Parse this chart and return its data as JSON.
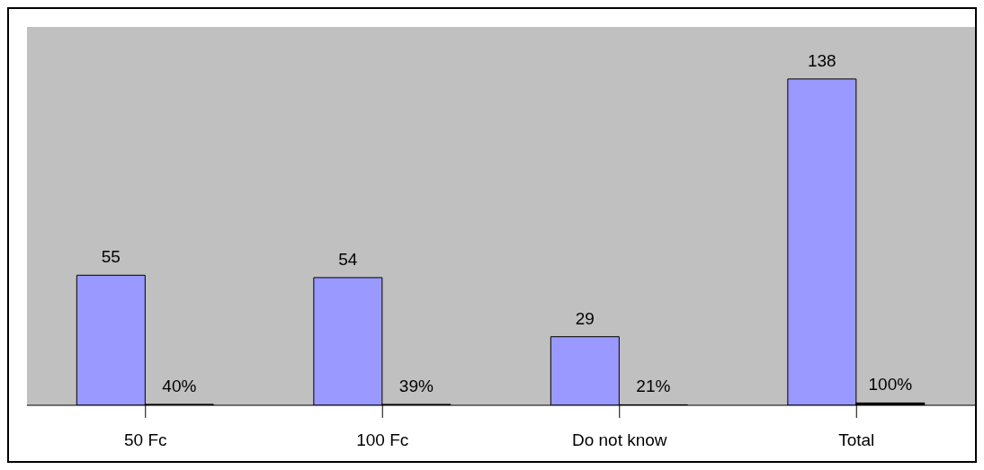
{
  "chart_data": {
    "type": "bar",
    "categories": [
      "50 Fc",
      "100 Fc",
      "Do not know",
      "Total"
    ],
    "series": [
      {
        "color": "#9999ff",
        "values": [
          55,
          54,
          29,
          138
        ],
        "value_labels": [
          "55",
          "54",
          "29",
          "138"
        ]
      },
      {
        "color": "#000000",
        "values": [
          0.4,
          0.39,
          0.21,
          1.0
        ],
        "value_labels": [
          "40%",
          "39%",
          "21%",
          "100%"
        ]
      }
    ],
    "ylim": [
      0,
      160
    ],
    "tick_labels": "x",
    "grid": false,
    "legend": false
  }
}
